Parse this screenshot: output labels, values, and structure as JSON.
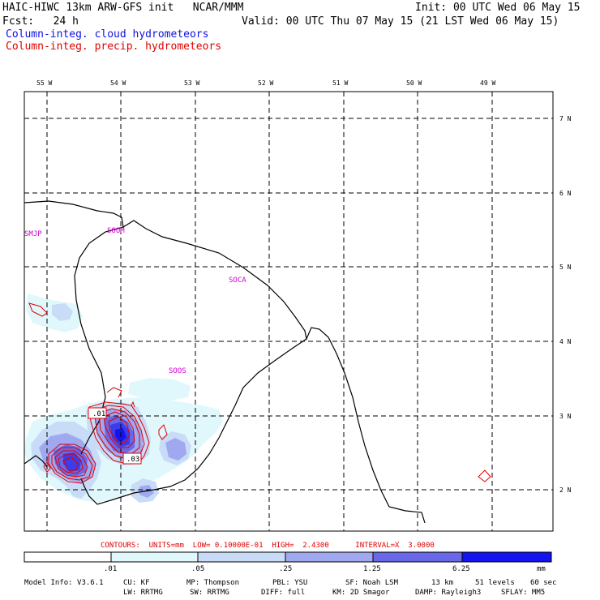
{
  "header": {
    "model_line": "HAIC-HIWC 13km ARW-GFS init   NCAR/MMM",
    "init_line": "Init: 00 UTC Wed 06 May 15",
    "fcst_line": "Fcst:   24 h",
    "valid_line": "Valid: 00 UTC Thu 07 May 15 (21 LST Wed 06 May 15)",
    "field_cloud": "Column-integ. cloud hydrometeors",
    "field_precip": "Column-integ. precip. hydrometeors"
  },
  "colors": {
    "cloud_title": "#1010e0",
    "precip_title": "#e00000",
    "station": "#d000d0",
    "contour": "#e00000",
    "shade_1": "#e0f8fc",
    "shade_2": "#c8dcf8",
    "shade_3": "#a0a8f0",
    "shade_4": "#6868e8",
    "shade_5": "#3c3ce8",
    "shade_6": "#1414f0"
  },
  "map": {
    "lon_labels": [
      "55 W",
      "54 W",
      "53 W",
      "52 W",
      "51 W",
      "50 W",
      "49 W"
    ],
    "lat_labels": [
      "7 N",
      "6 N",
      "5 N",
      "4 N",
      "3 N",
      "2 N"
    ],
    "stations": [
      "SMJP",
      "SOOM",
      "SOCA",
      "SOOS"
    ],
    "contour_labels": [
      ".01",
      ".03"
    ]
  },
  "contour_info": "CONTOURS:  UNITS=mm  LOW= 0.10000E-01  HIGH=  2.4300      INTERVAL=X  3.0000",
  "colorbar": {
    "tick_labels": [
      ".01",
      ".05",
      ".25",
      "1.25",
      "6.25"
    ],
    "units": "mm"
  },
  "footer": {
    "line1": [
      "Model Info: V3.6.1",
      "CU: KF",
      "MP: Thompson",
      "PBL: YSU",
      "SF: Noah LSM",
      "13 km",
      "51 levels",
      "60 sec"
    ],
    "line2": [
      "LW: RRTMG",
      "SW: RRTMG",
      "DIFF: full",
      "KM: 2D Smagor",
      "DAMP: Rayleigh3",
      "SFLAY: MM5"
    ]
  }
}
